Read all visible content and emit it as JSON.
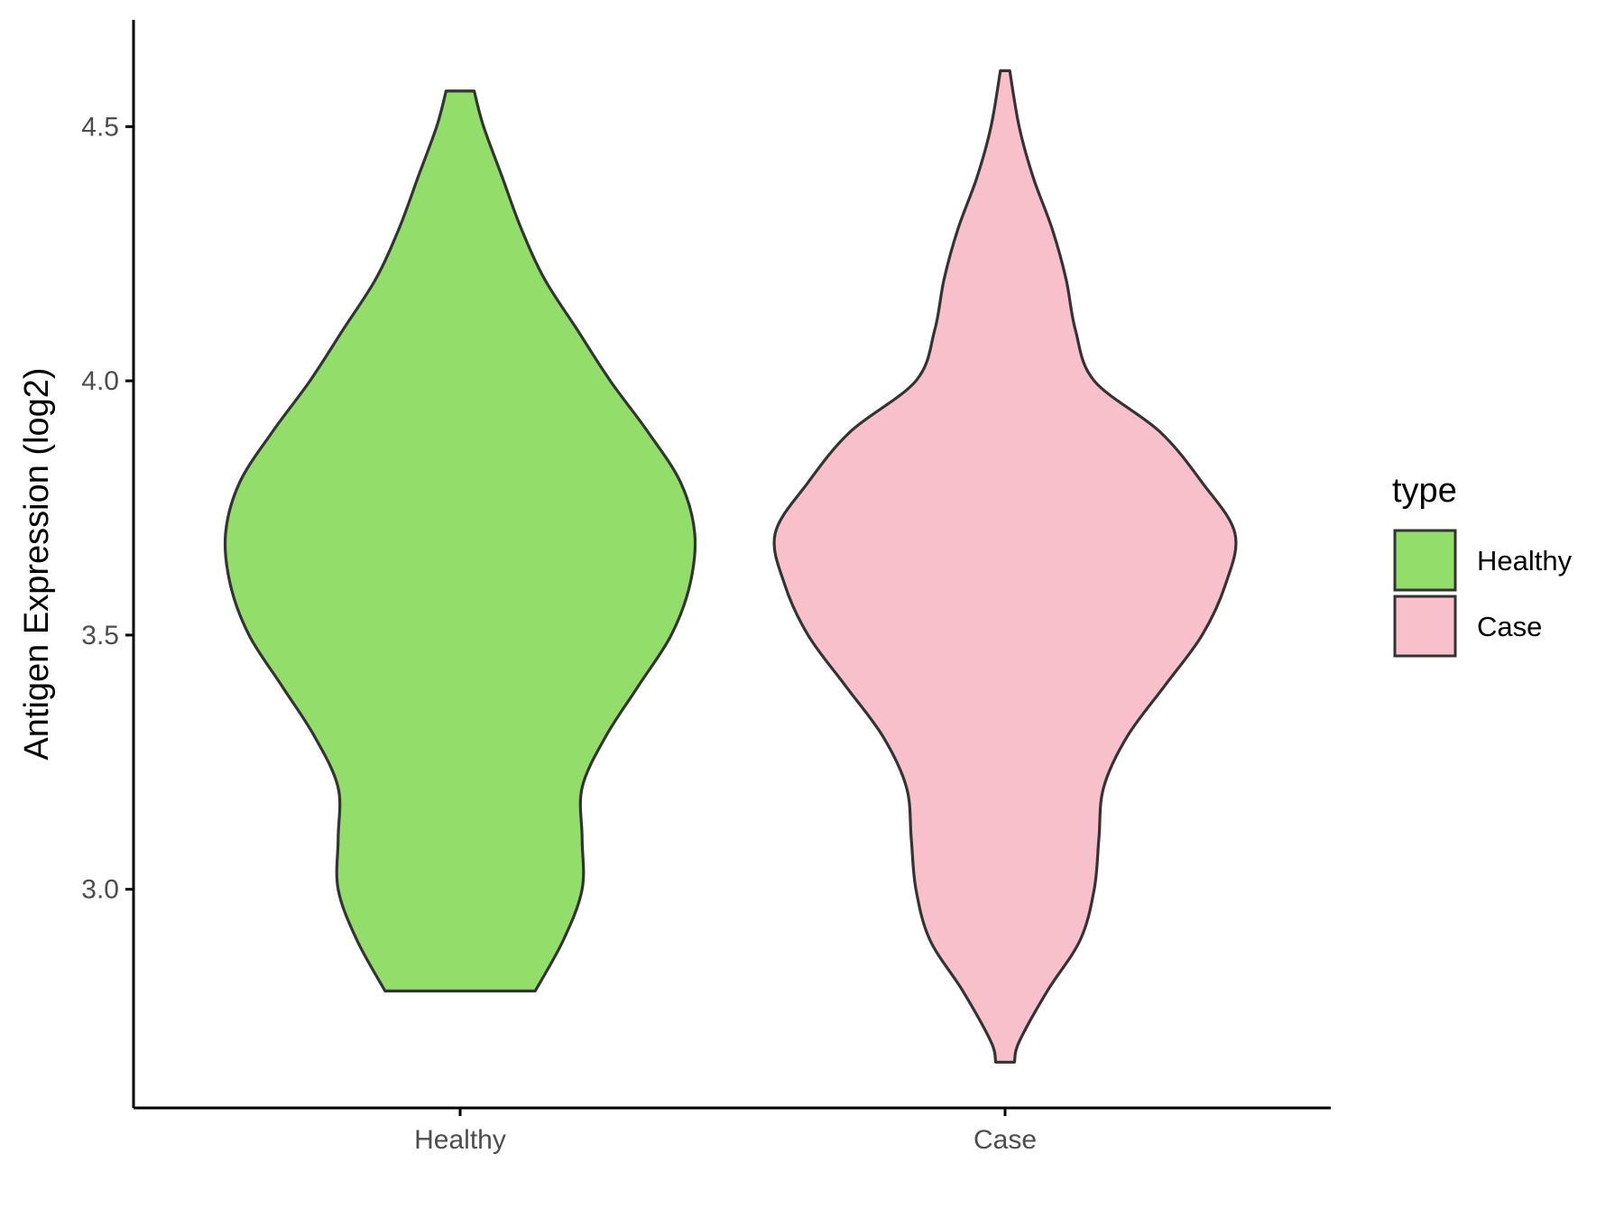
{
  "chart_data": {
    "type": "violin",
    "ylabel": "Antigen Expression (log2)",
    "xlabel": "",
    "categories": [
      "Healthy",
      "Case"
    ],
    "y_ticks": [
      "3.0",
      "3.5",
      "4.0",
      "4.5"
    ],
    "ylim": [
      2.57,
      4.71
    ],
    "legend": {
      "title": "type",
      "placement": "right",
      "entries": [
        "Healthy",
        "Case"
      ]
    },
    "grid": false,
    "series": [
      {
        "category": "Healthy",
        "color": "#93dd6b",
        "y_min": 2.8,
        "y_max": 4.57,
        "density_profile": [
          [
            2.8,
            0.16
          ],
          [
            2.9,
            0.22
          ],
          [
            3.0,
            0.26
          ],
          [
            3.1,
            0.26
          ],
          [
            3.2,
            0.26
          ],
          [
            3.3,
            0.31
          ],
          [
            3.4,
            0.38
          ],
          [
            3.5,
            0.45
          ],
          [
            3.6,
            0.49
          ],
          [
            3.7,
            0.5
          ],
          [
            3.8,
            0.47
          ],
          [
            3.9,
            0.4
          ],
          [
            4.0,
            0.32
          ],
          [
            4.1,
            0.25
          ],
          [
            4.2,
            0.18
          ],
          [
            4.3,
            0.13
          ],
          [
            4.4,
            0.09
          ],
          [
            4.5,
            0.05
          ],
          [
            4.57,
            0.03
          ]
        ]
      },
      {
        "category": "Case",
        "color": "#f8c0cb",
        "y_min": 2.66,
        "y_max": 4.61,
        "density_profile": [
          [
            2.66,
            0.02
          ],
          [
            2.7,
            0.03
          ],
          [
            2.8,
            0.09
          ],
          [
            2.9,
            0.16
          ],
          [
            3.0,
            0.19
          ],
          [
            3.1,
            0.2
          ],
          [
            3.2,
            0.21
          ],
          [
            3.3,
            0.26
          ],
          [
            3.4,
            0.34
          ],
          [
            3.5,
            0.42
          ],
          [
            3.6,
            0.47
          ],
          [
            3.7,
            0.49
          ],
          [
            3.8,
            0.42
          ],
          [
            3.9,
            0.33
          ],
          [
            4.0,
            0.19
          ],
          [
            4.1,
            0.15
          ],
          [
            4.2,
            0.13
          ],
          [
            4.3,
            0.1
          ],
          [
            4.4,
            0.06
          ],
          [
            4.5,
            0.03
          ],
          [
            4.61,
            0.01
          ]
        ]
      }
    ]
  }
}
